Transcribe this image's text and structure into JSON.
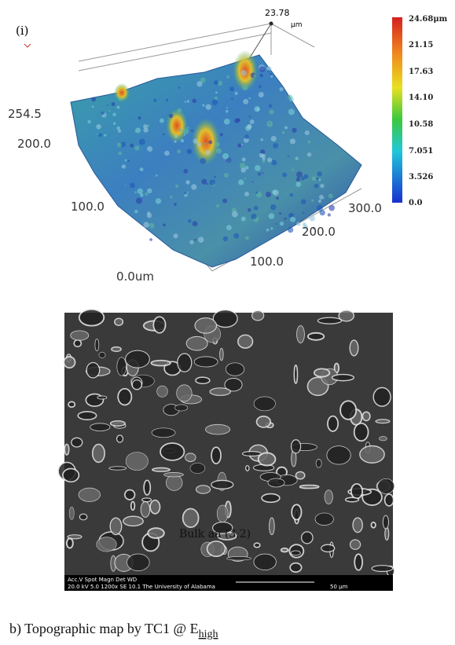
{
  "panel_label": "(i)",
  "surface_plot": {
    "peak_label": "23.78",
    "peak_unit": "μm",
    "axis_labels": [
      "254.5",
      "200.0",
      "100.0",
      "0.0um",
      "100.0",
      "200.0",
      "300.0"
    ],
    "colorbar_labels": [
      "24.68μm",
      "21.15",
      "17.63",
      "14.10",
      "10.58",
      "7.051",
      "3.526",
      "0.0"
    ]
  },
  "sem_image": {
    "overlay_text": "Bulk aa (3.2)",
    "databar_header": "Acc.V  Spot Magn   Det  WD",
    "databar_values": "20.0 kV 5.0  1200x   SE  10.1  The University of Alabama",
    "scale_label": "50 μm"
  },
  "caption": {
    "text": "b) Topographic map by TC1 @ E",
    "subscript": "high"
  }
}
